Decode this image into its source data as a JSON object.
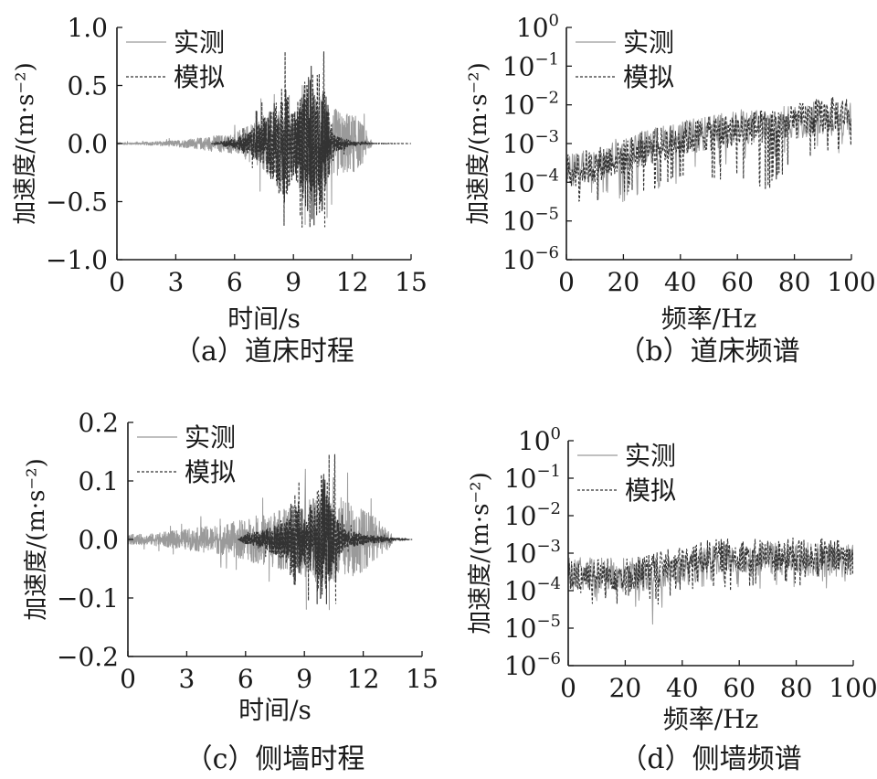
{
  "chart_data": [
    {
      "type": "line",
      "caption": "（a）道床时程",
      "xlabel": "时间/s",
      "ylabel": "加速度/(m·s⁻²)",
      "xlim": [
        0,
        15
      ],
      "ylim": [
        -1.0,
        1.0
      ],
      "x_ticks": [
        0,
        3,
        6,
        9,
        12,
        15
      ],
      "y_ticks": [
        -1.0,
        -0.5,
        0.0,
        0.5,
        1.0
      ],
      "y_tick_labels": [
        "−1.0",
        "−0.5",
        "0.0",
        "0.5",
        "1.0"
      ],
      "log_y": false,
      "legend_position": "top-right",
      "series": [
        {
          "name": "实测",
          "style": "solid",
          "color": "#9a9a9a",
          "x": [
            0,
            1,
            2,
            3,
            4,
            5,
            6,
            7,
            7.5,
            8,
            8.5,
            9,
            9.5,
            10,
            10.5,
            11,
            11.5,
            12,
            12.5,
            13
          ],
          "y_envelope": [
            0.01,
            0.01,
            0.02,
            0.03,
            0.05,
            0.08,
            0.1,
            0.2,
            0.3,
            0.35,
            0.3,
            0.25,
            0.4,
            0.5,
            0.45,
            0.35,
            0.3,
            0.3,
            0.2,
            0.02
          ],
          "y_peak_max": 0.5,
          "y_peak_min": -0.7
        },
        {
          "name": "模拟",
          "style": "dashed",
          "color": "#333333",
          "x": [
            4.8,
            6,
            7,
            7.5,
            8,
            8.5,
            9,
            9.5,
            10,
            10.5,
            11,
            12,
            13,
            14,
            15
          ],
          "y_envelope": [
            0.0,
            0.05,
            0.15,
            0.25,
            0.4,
            0.6,
            0.3,
            0.55,
            0.79,
            0.7,
            0.1,
            0.02,
            0.005,
            0.002,
            0.0
          ],
          "y_peak_max": 0.79,
          "y_peak_min": -0.72
        }
      ]
    },
    {
      "type": "line",
      "caption": "（b）道床频谱",
      "xlabel": "频率/Hz",
      "ylabel": "加速度/(m·s⁻²)",
      "xlim": [
        0,
        100
      ],
      "ylim": [
        1e-06,
        1
      ],
      "x_ticks": [
        0,
        20,
        40,
        60,
        80,
        100
      ],
      "y_tick_exponents": [
        0,
        -1,
        -2,
        -3,
        -4,
        -5,
        -6
      ],
      "log_y": true,
      "legend_position": "top-right",
      "series": [
        {
          "name": "实测",
          "style": "solid",
          "color": "#9a9a9a",
          "x": [
            0,
            10,
            20,
            30,
            40,
            50,
            60,
            70,
            80,
            90,
            100
          ],
          "y_median": [
            0.0002,
            0.0003,
            0.0006,
            0.001,
            0.0015,
            0.002,
            0.003,
            0.003,
            0.004,
            0.005,
            0.005
          ],
          "y_min": [
            4e-05,
            3e-05,
            3e-05,
            5e-05,
            0.0001,
            0.0002,
            0.0003,
            0.0003,
            0.0004,
            0.0005,
            0.0005
          ]
        },
        {
          "name": "模拟",
          "style": "dashed",
          "color": "#333333",
          "x": [
            0,
            10,
            20,
            30,
            40,
            50,
            60,
            70,
            80,
            90,
            100
          ],
          "y_median": [
            0.0002,
            0.0003,
            0.0005,
            0.0009,
            0.0014,
            0.002,
            0.0025,
            0.003,
            0.004,
            0.006,
            0.007
          ],
          "y_min": [
            4e-05,
            2e-05,
            5e-05,
            6e-05,
            0.0001,
            0.0001,
            0.0001,
            4e-05,
            0.0002,
            0.0005,
            0.0005
          ]
        }
      ]
    },
    {
      "type": "line",
      "caption": "（c）侧墙时程",
      "xlabel": "时间/s",
      "ylabel": "加速度/(m·s⁻²)",
      "xlim": [
        0,
        15
      ],
      "ylim": [
        -0.2,
        0.2
      ],
      "x_ticks": [
        0,
        3,
        6,
        9,
        12,
        15
      ],
      "y_ticks": [
        -0.2,
        -0.1,
        0.0,
        0.1,
        0.2
      ],
      "y_tick_labels": [
        "−0.2",
        "−0.1",
        "0.0",
        "0.1",
        "0.2"
      ],
      "log_y": false,
      "legend_position": "top-right",
      "series": [
        {
          "name": "实测",
          "style": "solid",
          "color": "#9a9a9a",
          "x": [
            0,
            1,
            2,
            3,
            4,
            5,
            6,
            7,
            8,
            9,
            10,
            11,
            12,
            13,
            13.5
          ],
          "y_envelope": [
            0.01,
            0.01,
            0.015,
            0.02,
            0.025,
            0.03,
            0.04,
            0.05,
            0.06,
            0.07,
            0.09,
            0.08,
            0.06,
            0.03,
            0.01
          ],
          "y_peak_max": 0.12,
          "y_peak_min": -0.12
        },
        {
          "name": "模拟",
          "style": "dashed",
          "color": "#333333",
          "x": [
            5.6,
            6,
            7,
            8,
            8.5,
            9,
            9.5,
            10,
            10.5,
            11,
            12,
            13,
            14,
            14.5
          ],
          "y_envelope": [
            0.0,
            0.01,
            0.02,
            0.04,
            0.09,
            0.05,
            0.08,
            0.14,
            0.05,
            0.02,
            0.01,
            0.005,
            0.002,
            0.0
          ],
          "y_peak_max": 0.145,
          "y_peak_min": -0.11
        }
      ]
    },
    {
      "type": "line",
      "caption": "（d）侧墙频谱",
      "xlabel": "频率/Hz",
      "ylabel": "加速度/(m·s⁻²)",
      "xlim": [
        0,
        100
      ],
      "ylim": [
        1e-06,
        1
      ],
      "x_ticks": [
        0,
        20,
        40,
        60,
        80,
        100
      ],
      "y_tick_exponents": [
        0,
        -1,
        -2,
        -3,
        -4,
        -5,
        -6
      ],
      "log_y": true,
      "legend_position": "top-right",
      "series": [
        {
          "name": "实测",
          "style": "solid",
          "color": "#9a9a9a",
          "x": [
            0,
            10,
            20,
            30,
            40,
            50,
            60,
            70,
            80,
            90,
            100
          ],
          "y_median": [
            0.0003,
            0.0003,
            0.0003,
            0.0003,
            0.0004,
            0.0006,
            0.0007,
            0.0008,
            0.0008,
            0.0007,
            0.0007
          ],
          "y_min": [
            0.0001,
            5e-05,
            5e-05,
            5e-06,
            0.0001,
            0.0001,
            0.0001,
            0.0001,
            0.0001,
            0.0001,
            0.0001
          ]
        },
        {
          "name": "模拟",
          "style": "dashed",
          "color": "#333333",
          "x": [
            0,
            10,
            20,
            30,
            40,
            50,
            60,
            70,
            80,
            90,
            100
          ],
          "y_median": [
            0.0003,
            0.0003,
            0.0003,
            0.0004,
            0.0006,
            0.0009,
            0.001,
            0.001,
            0.001,
            0.001,
            0.0008
          ],
          "y_min": [
            0.0001,
            3e-05,
            5e-05,
            3e-05,
            0.0001,
            0.0001,
            5e-05,
            0.0001,
            0.0001,
            0.0002,
            0.0002
          ]
        }
      ]
    }
  ]
}
